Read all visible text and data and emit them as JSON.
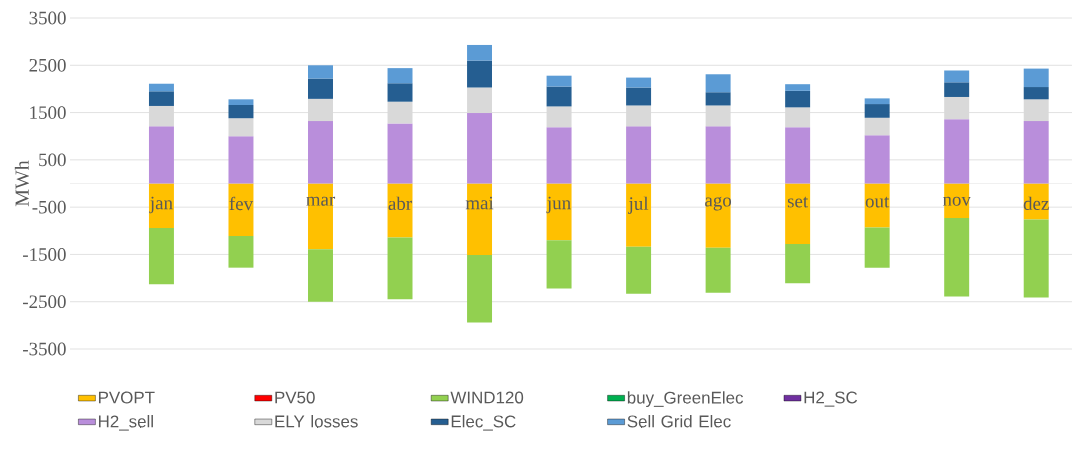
{
  "chart_data": {
    "type": "bar",
    "stacked": true,
    "ylabel": "MWh",
    "categories": [
      "jan",
      "fev",
      "mar",
      "abr",
      "mai",
      "jun",
      "jul",
      "ago",
      "set",
      "out",
      "nov",
      "dez"
    ],
    "series": [
      {
        "name": "PVOPT",
        "color": "#ffc000",
        "values": [
          -940,
          -1110,
          -1390,
          -1140,
          -1510,
          -1200,
          -1340,
          -1360,
          -1280,
          -930,
          -730,
          -760
        ]
      },
      {
        "name": "PV50",
        "color": "#ff0000",
        "values": [
          0,
          0,
          0,
          0,
          0,
          0,
          0,
          0,
          0,
          0,
          0,
          0
        ]
      },
      {
        "name": "WIND120",
        "color": "#92d050",
        "values": [
          -1190,
          -670,
          -1110,
          -1310,
          -1430,
          -1020,
          -990,
          -950,
          -830,
          -850,
          -1660,
          -1650
        ]
      },
      {
        "name": "buy_GreenElec",
        "color": "#00b050",
        "values": [
          0,
          0,
          0,
          0,
          0,
          0,
          0,
          0,
          0,
          0,
          0,
          0
        ]
      },
      {
        "name": "H2_SC",
        "color": "#7030a0",
        "values": [
          0,
          0,
          0,
          0,
          0,
          0,
          0,
          0,
          0,
          0,
          0,
          0
        ]
      },
      {
        "name": "H2_sell",
        "color": "#b98edb",
        "values": [
          1210,
          1000,
          1320,
          1270,
          1490,
          1190,
          1210,
          1210,
          1190,
          1020,
          1360,
          1320
        ]
      },
      {
        "name": "ELY losses",
        "color": "#d9d9d9",
        "values": [
          430,
          380,
          470,
          460,
          540,
          440,
          440,
          440,
          420,
          370,
          470,
          460
        ]
      },
      {
        "name": "Elec_SC",
        "color": "#255e91",
        "values": [
          310,
          280,
          430,
          390,
          570,
          420,
          380,
          280,
          350,
          290,
          310,
          260
        ]
      },
      {
        "name": "Sell Grid Elec",
        "color": "#5b9bd5",
        "values": [
          160,
          120,
          280,
          320,
          330,
          230,
          210,
          380,
          140,
          120,
          250,
          390
        ]
      }
    ],
    "ylim": [
      -3500,
      3500
    ],
    "yticks": [
      -3500,
      -2500,
      -1500,
      -500,
      500,
      1500,
      2500,
      3500
    ],
    "grid": "y",
    "legend": "bottom"
  }
}
